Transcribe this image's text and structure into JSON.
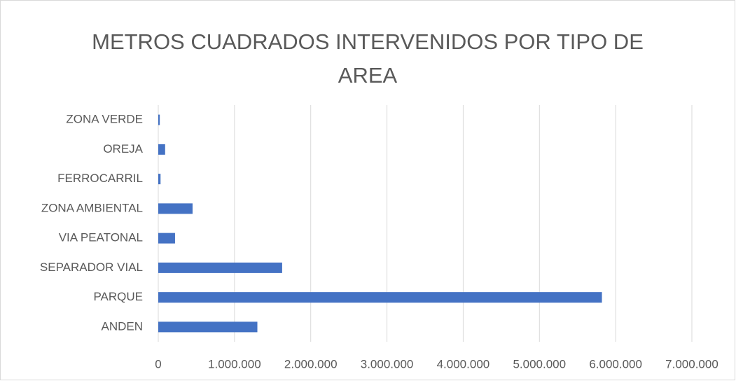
{
  "chart_data": {
    "type": "bar",
    "orientation": "horizontal",
    "title": "METROS CUADRADOS INTERVENIDOS POR TIPO DE AREA",
    "categories": [
      "ANDEN",
      "PARQUE",
      "SEPARADOR VIAL",
      "VIA PEATONAL",
      "ZONA AMBIENTAL",
      "FERROCARRIL",
      "OREJA",
      "ZONA VERDE"
    ],
    "values": [
      1300000,
      5820000,
      1625000,
      220000,
      450000,
      30000,
      90000,
      20000
    ],
    "color": "#4472c4",
    "xlim": [
      0,
      7000000
    ],
    "xticks": [
      0,
      {
        "value": 1000000,
        "label": "1.000.000"
      },
      {
        "value": 2000000,
        "label": "2.000.000"
      },
      {
        "value": 3000000,
        "label": "3.000.000"
      },
      {
        "value": 4000000,
        "label": "4.000.000"
      },
      {
        "value": 5000000,
        "label": "5.000.000"
      },
      {
        "value": 6000000,
        "label": "6.000.000"
      },
      {
        "value": 7000000,
        "label": "7.000.000"
      }
    ],
    "grid": true
  }
}
